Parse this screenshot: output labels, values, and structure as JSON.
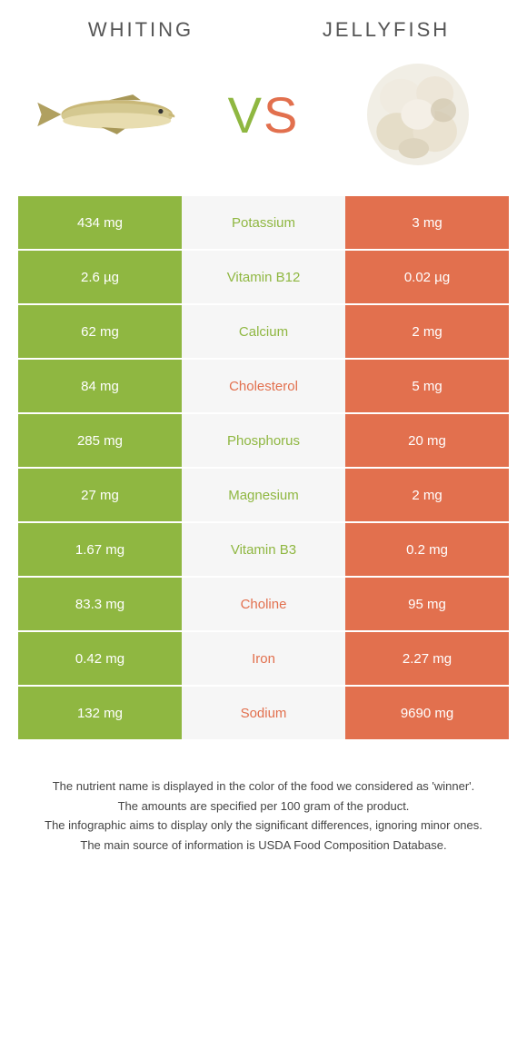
{
  "header": {
    "left_title": "Whiting",
    "right_title": "Jellyfish",
    "vs_v": "V",
    "vs_s": "S"
  },
  "colors": {
    "green": "#8fb741",
    "orange": "#e2704e",
    "mid_bg": "#f6f6f6"
  },
  "rows": [
    {
      "left": "434 mg",
      "mid": "Potassium",
      "right": "3 mg",
      "winner": "left"
    },
    {
      "left": "2.6 µg",
      "mid": "Vitamin B12",
      "right": "0.02 µg",
      "winner": "left"
    },
    {
      "left": "62 mg",
      "mid": "Calcium",
      "right": "2 mg",
      "winner": "left"
    },
    {
      "left": "84 mg",
      "mid": "Cholesterol",
      "right": "5 mg",
      "winner": "right"
    },
    {
      "left": "285 mg",
      "mid": "Phosphorus",
      "right": "20 mg",
      "winner": "left"
    },
    {
      "left": "27 mg",
      "mid": "Magnesium",
      "right": "2 mg",
      "winner": "left"
    },
    {
      "left": "1.67 mg",
      "mid": "Vitamin B3",
      "right": "0.2 mg",
      "winner": "left"
    },
    {
      "left": "83.3 mg",
      "mid": "Choline",
      "right": "95 mg",
      "winner": "right"
    },
    {
      "left": "0.42 mg",
      "mid": "Iron",
      "right": "2.27 mg",
      "winner": "right"
    },
    {
      "left": "132 mg",
      "mid": "Sodium",
      "right": "9690 mg",
      "winner": "right"
    }
  ],
  "footnotes": {
    "line1": "The nutrient name is displayed in the color of the food we considered as 'winner'.",
    "line2": "The amounts are specified per 100 gram of the product.",
    "line3": "The infographic aims to display only the significant differences, ignoring minor ones.",
    "line4": "The main source of information is USDA Food Composition Database."
  }
}
